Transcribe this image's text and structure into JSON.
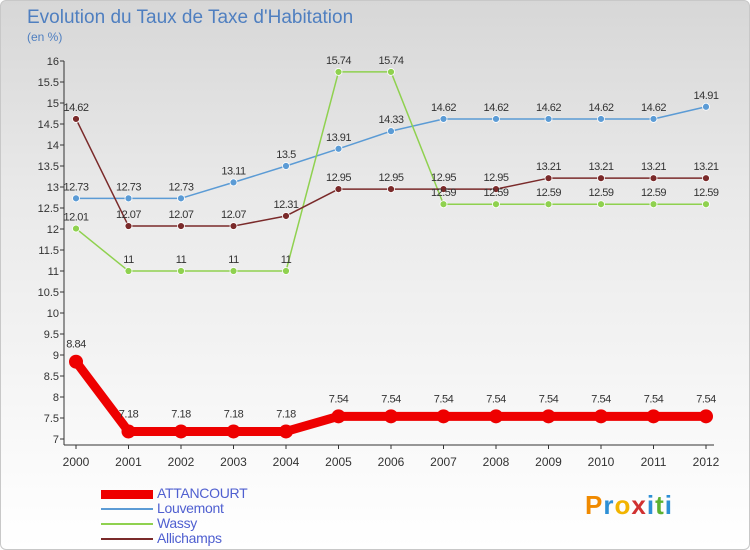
{
  "header": {
    "title": "Evolution du Taux de Taxe d'Habitation",
    "subtitle": "(en %)"
  },
  "chart_data": {
    "type": "line",
    "x": [
      "2000",
      "2001",
      "2002",
      "2003",
      "2004",
      "2005",
      "2006",
      "2007",
      "2008",
      "2009",
      "2010",
      "2011",
      "2012"
    ],
    "ylim": [
      7,
      16
    ],
    "yticks": [
      "7",
      "7.5",
      "8",
      "8.5",
      "9",
      "9.5",
      "10",
      "10.5",
      "11",
      "11.5",
      "12",
      "12.5",
      "13",
      "13.5",
      "14",
      "14.5",
      "15",
      "15.5",
      "16"
    ],
    "grid": false,
    "legend_position": "bottom-left",
    "series": [
      {
        "name": "ATTANCOURT",
        "color": "#ee0000",
        "values": [
          8.84,
          7.18,
          7.18,
          7.18,
          7.18,
          7.54,
          7.54,
          7.54,
          7.54,
          7.54,
          7.54,
          7.54,
          7.54
        ],
        "labels": [
          "8.84",
          "7.18",
          "7.18",
          "7.18",
          "7.18",
          "7.54",
          "7.54",
          "7.54",
          "7.54",
          "7.54",
          "7.54",
          "7.54",
          "7.54"
        ]
      },
      {
        "name": "Louvemont",
        "color": "#5b9bd5",
        "values": [
          12.73,
          12.73,
          12.73,
          13.11,
          13.5,
          13.91,
          14.33,
          14.62,
          14.62,
          14.62,
          14.62,
          14.62,
          14.91
        ],
        "labels": [
          "12.73",
          "12.73",
          "12.73",
          "13.11",
          "13.5",
          "13.91",
          "14.33",
          "14.62",
          "14.62",
          "14.62",
          "14.62",
          "14.62",
          "14.91"
        ]
      },
      {
        "name": "Wassy",
        "color": "#8fd14f",
        "values": [
          12.01,
          11,
          11,
          11,
          11,
          15.74,
          15.74,
          12.59,
          12.59,
          12.59,
          12.59,
          12.59,
          12.59
        ],
        "labels": [
          "12.01",
          "11",
          "11",
          "11",
          "11",
          "15.74",
          "15.74",
          "12.59",
          "12.59",
          "12.59",
          "12.59",
          "12.59",
          "12.59"
        ]
      },
      {
        "name": "Allichamps",
        "color": "#7a2a2a",
        "values": [
          14.62,
          12.07,
          12.07,
          12.07,
          12.31,
          12.95,
          12.95,
          12.95,
          12.95,
          13.21,
          13.21,
          13.21,
          13.21
        ],
        "labels": [
          "14.62",
          "12.07",
          "12.07",
          "12.07",
          "12.31",
          "12.95",
          "12.95",
          "12.95",
          "12.95",
          "13.21",
          "13.21",
          "13.21",
          "13.21"
        ]
      }
    ]
  },
  "logo": {
    "letters": [
      "P",
      "r",
      "o",
      "x",
      "i",
      "t",
      "i"
    ],
    "colors": [
      "#f08a00",
      "#2d8fd5",
      "#f2b400",
      "#d03030",
      "#2d8fd5",
      "#5cb130",
      "#2d8fd5"
    ]
  }
}
